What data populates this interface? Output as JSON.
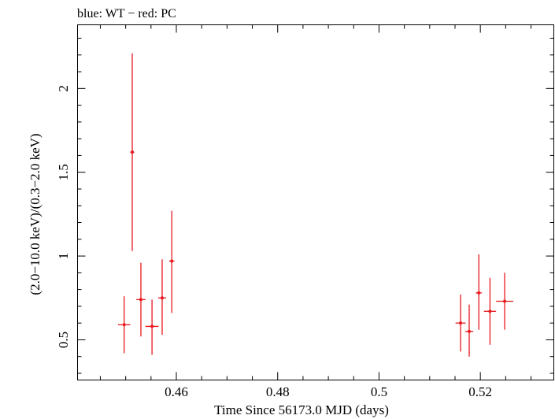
{
  "chart_data": {
    "type": "scatter",
    "title": "blue: WT − red: PC",
    "xlabel": "Time Since 56173.0 MJD (days)",
    "ylabel": "(2.0−10.0 keV)/(0.3−2.0 keV)",
    "xlim": [
      0.4405,
      0.5345
    ],
    "ylim": [
      0.26,
      2.38
    ],
    "x_ticks": [
      {
        "value": 0.46,
        "label": "0.46"
      },
      {
        "value": 0.48,
        "label": "0.48"
      },
      {
        "value": 0.5,
        "label": "0.5"
      },
      {
        "value": 0.52,
        "label": "0.52"
      }
    ],
    "y_ticks": [
      {
        "value": 0.5,
        "label": "0.5"
      },
      {
        "value": 1.0,
        "label": "1"
      },
      {
        "value": 1.5,
        "label": "1.5"
      },
      {
        "value": 2.0,
        "label": "2"
      }
    ],
    "grid": false,
    "colors": {
      "series": "#e8191e",
      "axes": "#000000"
    },
    "series": [
      {
        "name": "PC",
        "points": [
          {
            "x": 0.4497,
            "y": 0.59,
            "xerr": 0.0012,
            "ylo": 0.42,
            "yhi": 0.76
          },
          {
            "x": 0.4513,
            "y": 1.62,
            "xerr": 0.0004,
            "ylo": 1.03,
            "yhi": 2.21
          },
          {
            "x": 0.453,
            "y": 0.74,
            "xerr": 0.0009,
            "ylo": 0.52,
            "yhi": 0.96
          },
          {
            "x": 0.4552,
            "y": 0.58,
            "xerr": 0.0013,
            "ylo": 0.41,
            "yhi": 0.74
          },
          {
            "x": 0.4572,
            "y": 0.75,
            "xerr": 0.0008,
            "ylo": 0.53,
            "yhi": 0.98
          },
          {
            "x": 0.4591,
            "y": 0.97,
            "xerr": 0.0005,
            "ylo": 0.66,
            "yhi": 1.27
          },
          {
            "x": 0.5161,
            "y": 0.6,
            "xerr": 0.001,
            "ylo": 0.43,
            "yhi": 0.77
          },
          {
            "x": 0.5178,
            "y": 0.55,
            "xerr": 0.0008,
            "ylo": 0.4,
            "yhi": 0.71
          },
          {
            "x": 0.5197,
            "y": 0.78,
            "xerr": 0.0006,
            "ylo": 0.56,
            "yhi": 1.01
          },
          {
            "x": 0.5219,
            "y": 0.67,
            "xerr": 0.0012,
            "ylo": 0.47,
            "yhi": 0.87
          },
          {
            "x": 0.5248,
            "y": 0.73,
            "xerr": 0.0017,
            "ylo": 0.56,
            "yhi": 0.9
          }
        ]
      }
    ]
  }
}
